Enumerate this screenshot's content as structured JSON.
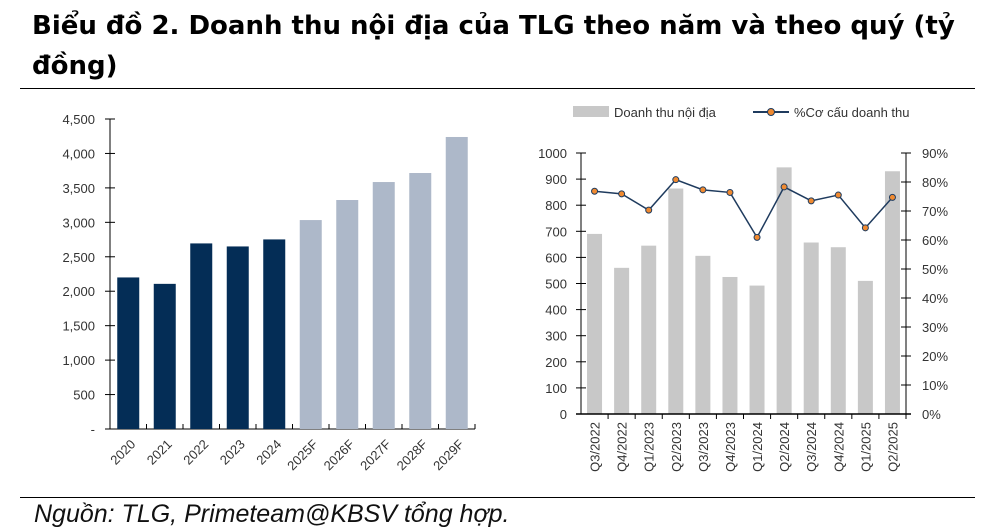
{
  "title": "Biểu đồ 2. Doanh thu nội địa của TLG theo năm và theo quý (tỷ đồng)",
  "source": "Nguồn: TLG, Primeteam@KBSV tổng hợp.",
  "chart_data": [
    {
      "type": "bar",
      "categories": [
        "2020",
        "2021",
        "2022",
        "2023",
        "2024",
        "2025F",
        "2026F",
        "2027F",
        "2028F",
        "2029F"
      ],
      "values": [
        2200,
        2107,
        2694,
        2650,
        2752,
        3033,
        3324,
        3585,
        3716,
        4239
      ],
      "ylim": [
        0,
        4500
      ],
      "yticks": [
        "-",
        "500",
        "1,000",
        "1,500",
        "2,000",
        "2,500",
        "3,000",
        "3,500",
        "4,000",
        "4,500"
      ],
      "colors": {
        "actual": "#042d56",
        "forecast": "#adb8c9"
      },
      "grid": false
    },
    {
      "type": "bar+line",
      "categories": [
        "Q3/2022",
        "Q4/2022",
        "Q1/2023",
        "Q2/2023",
        "Q3/2023",
        "Q4/2023",
        "Q1/2024",
        "Q2/2024",
        "Q3/2024",
        "Q4/2024",
        "Q1/2025",
        "Q2/2025"
      ],
      "series": [
        {
          "name": "Doanh thu nội địa",
          "type": "bar",
          "axis": "left",
          "color": "#c8c8c8",
          "values": [
            690,
            560,
            645,
            864,
            606,
            525,
            492,
            945,
            657,
            639,
            510,
            930
          ]
        },
        {
          "name": "%Cơ cấu doanh thu",
          "type": "line",
          "axis": "right",
          "color": "#1f3b5e",
          "marker_color": "#f08a30",
          "values": [
            76.8,
            75.9,
            70.3,
            80.8,
            77.3,
            76.4,
            60.9,
            78.3,
            73.5,
            75.5,
            64.2,
            74.7
          ]
        }
      ],
      "ylim": [
        0,
        1000
      ],
      "yticks": [
        "0",
        "100",
        "200",
        "300",
        "400",
        "500",
        "600",
        "700",
        "800",
        "900",
        "1000"
      ],
      "y2lim": [
        0,
        90
      ],
      "y2ticks": [
        "0%",
        "10%",
        "20%",
        "30%",
        "40%",
        "50%",
        "60%",
        "70%",
        "80%",
        "90%"
      ],
      "legend": "top",
      "grid": false
    }
  ]
}
